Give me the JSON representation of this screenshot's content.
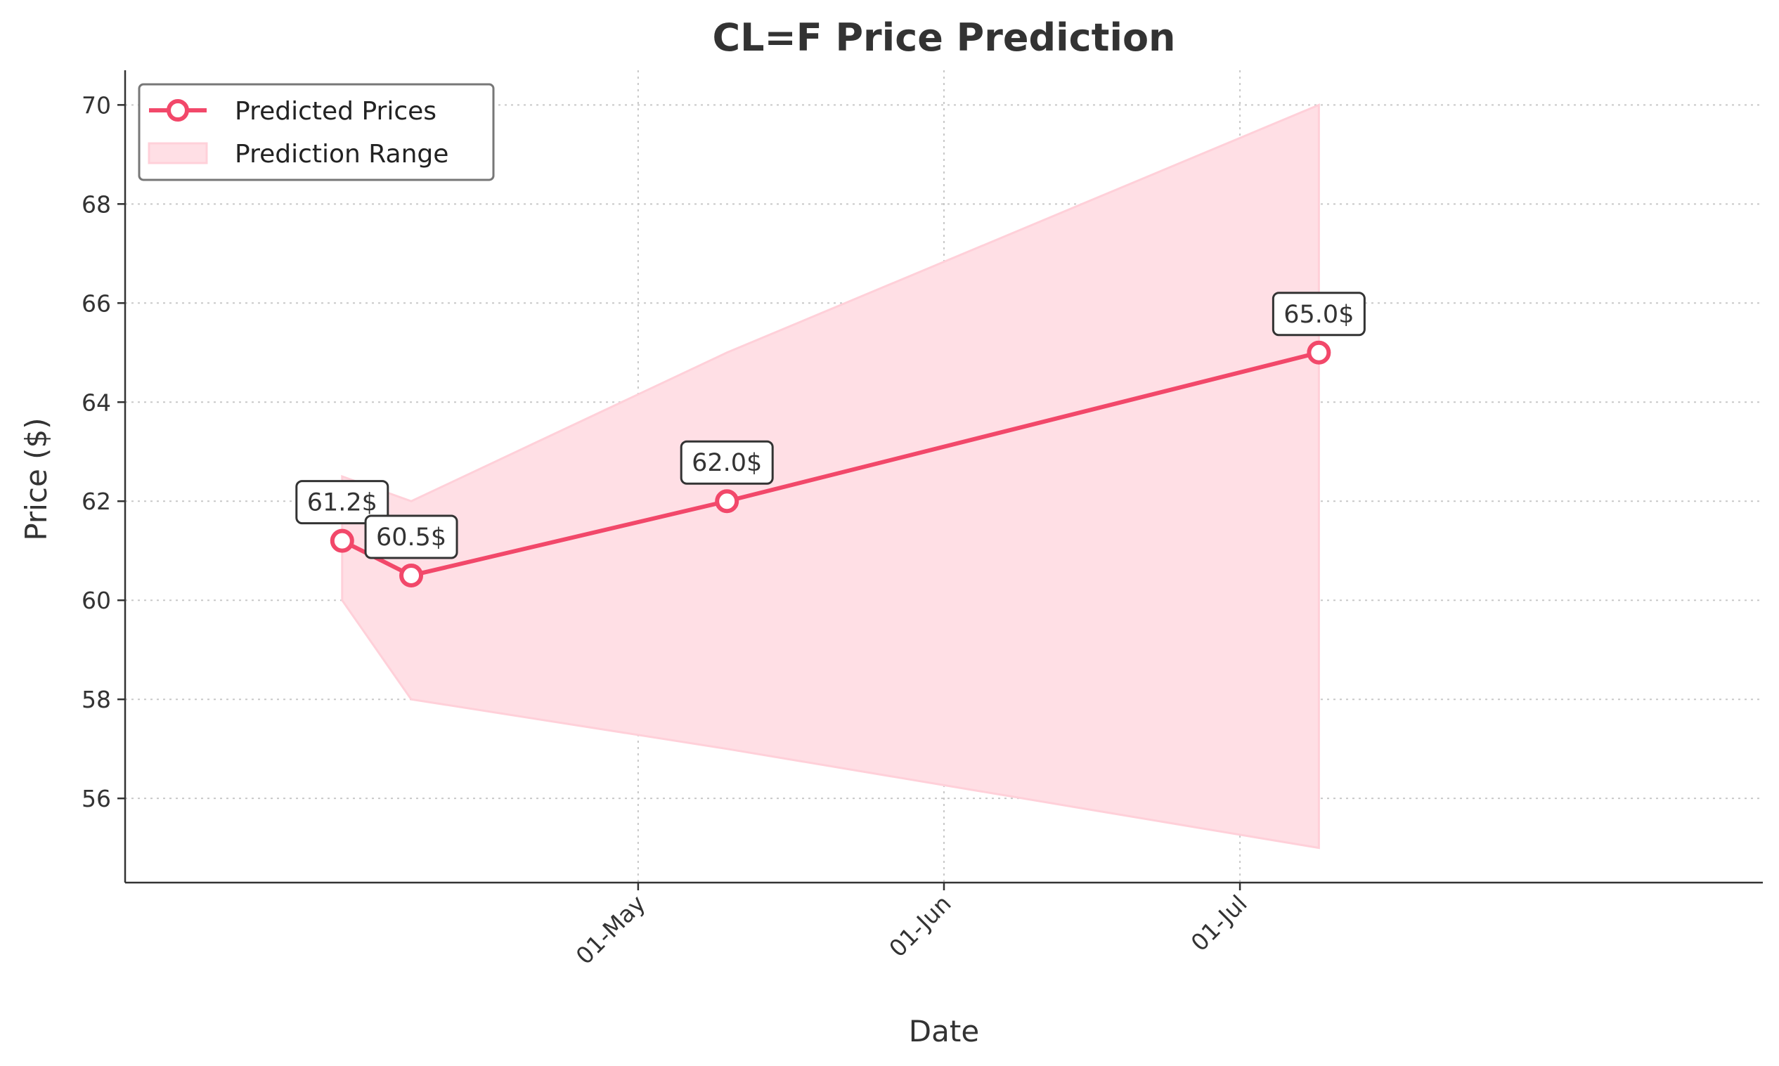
{
  "chart_data": {
    "type": "line",
    "title": "CL=F Price Prediction",
    "xlabel": "Date",
    "ylabel": "Price ($)",
    "x_range_days": [
      -22,
      144
    ],
    "ylim": [
      54.3,
      70.7
    ],
    "yticks": [
      56,
      58,
      60,
      62,
      64,
      66,
      68,
      70
    ],
    "xticks": [
      {
        "day": 30,
        "label": "01-May"
      },
      {
        "day": 61,
        "label": "01-Jun"
      },
      {
        "day": 91,
        "label": "01-Jul"
      }
    ],
    "grid": true,
    "legend_position": "upper-left",
    "series": [
      {
        "name": "Predicted Prices",
        "color": "#f2486a",
        "points": [
          {
            "day": 0,
            "value": 61.2,
            "label": "61.2$"
          },
          {
            "day": 7,
            "value": 60.5,
            "label": "60.5$"
          },
          {
            "day": 39,
            "value": 62.0,
            "label": "62.0$"
          },
          {
            "day": 99,
            "value": 65.0,
            "label": "65.0$"
          }
        ]
      }
    ],
    "range": {
      "name": "Prediction Range",
      "color": "#ffdfe5",
      "points": [
        {
          "day": 0,
          "low": 60.0,
          "high": 62.5
        },
        {
          "day": 7,
          "low": 58.0,
          "high": 62.0
        },
        {
          "day": 39,
          "low": 57.0,
          "high": 65.0
        },
        {
          "day": 99,
          "low": 55.0,
          "high": 70.0
        }
      ]
    }
  }
}
